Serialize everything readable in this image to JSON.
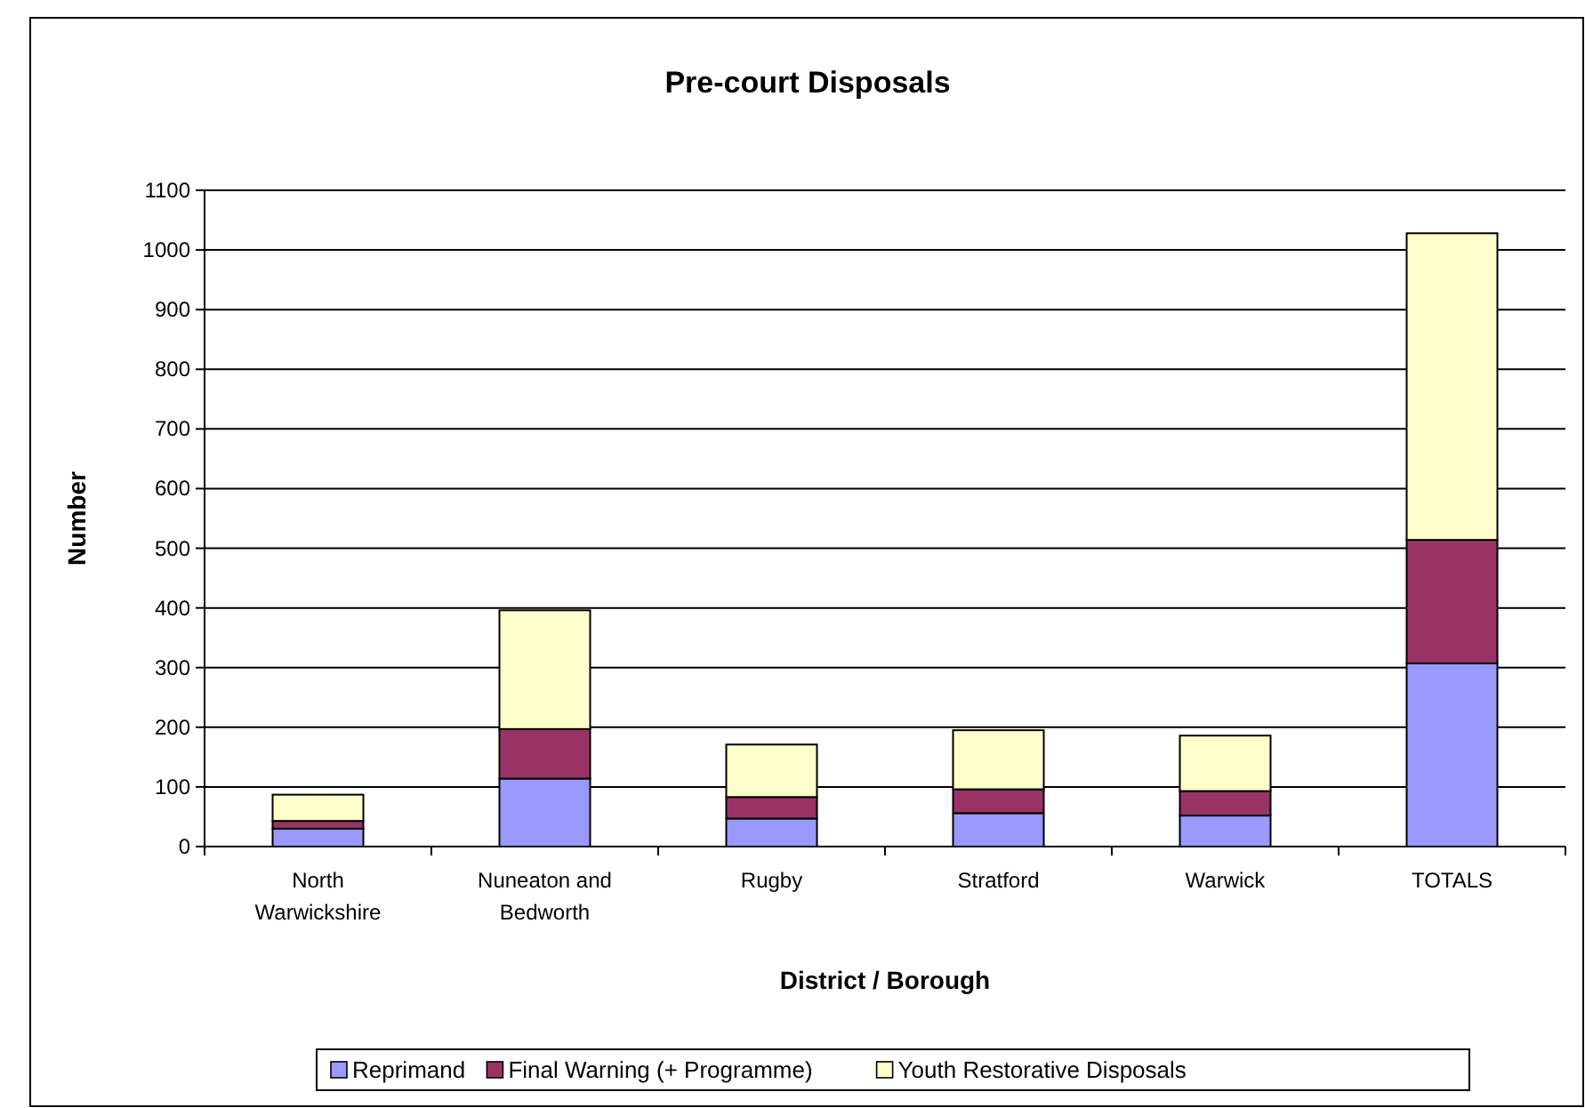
{
  "chart_data": {
    "type": "bar",
    "title": "Pre-court Disposals",
    "xlabel": "District / Borough",
    "ylabel": "Number",
    "stacked": true,
    "categories": [
      "North Warwickshire",
      "Nuneaton and Bedworth",
      "Rugby",
      "Stratford",
      "Warwick",
      "TOTALS"
    ],
    "series": [
      {
        "name": "Reprimand",
        "color": "#9999ff",
        "values": [
          30,
          114,
          47,
          56,
          52,
          307
        ]
      },
      {
        "name": "Final Warning (+ Programme)",
        "color": "#993366",
        "values": [
          13,
          83,
          36,
          40,
          41,
          207
        ]
      },
      {
        "name": "Youth Restorative Disposals",
        "color": "#ffffcc",
        "values": [
          44,
          199,
          88,
          99,
          93,
          514
        ]
      }
    ],
    "ylim": [
      0,
      1100
    ],
    "yticks": [
      0,
      100,
      200,
      300,
      400,
      500,
      600,
      700,
      800,
      900,
      1000,
      1100
    ],
    "grid": "y",
    "legend": "bottom"
  }
}
